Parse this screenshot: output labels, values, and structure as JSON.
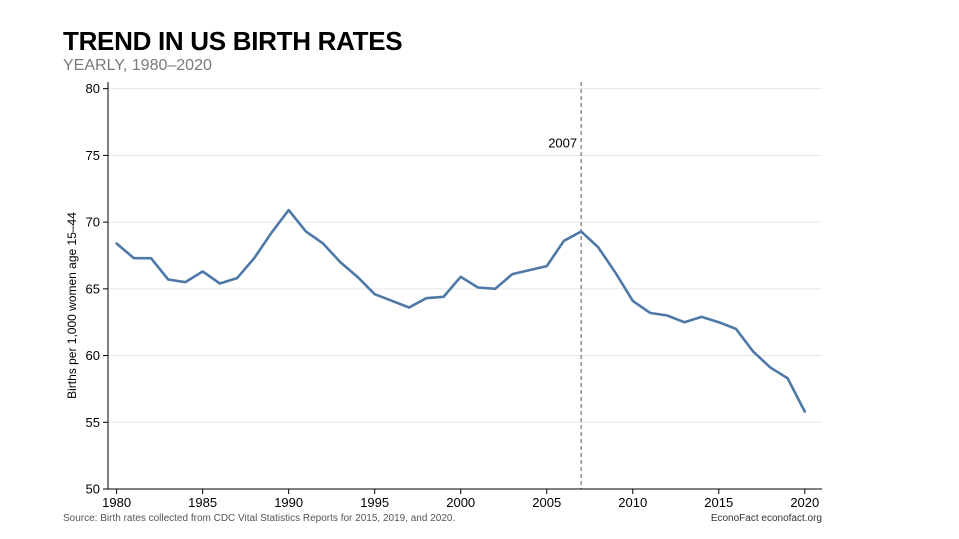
{
  "header": {
    "title": "TREND IN US BIRTH RATES",
    "subtitle": "YEARLY, 1980–2020"
  },
  "footer": {
    "source": "Source: Birth rates collected from CDC Vital Statistics Reports for 2015, 2019, and 2020.",
    "credit": "EconoFact   econofact.org"
  },
  "colors": {
    "line": "#4e79a7",
    "grid": "#e6e6e6",
    "reference_line": "#555555"
  },
  "chart_data": {
    "type": "line",
    "title": "TREND IN US BIRTH RATES",
    "subtitle": "YEARLY, 1980–2020",
    "xlabel": "",
    "ylabel": "Births per 1,000 women age 15–44",
    "xlim": [
      1979.5,
      2021
    ],
    "ylim": [
      50,
      80.5
    ],
    "x_ticks": [
      1980,
      1985,
      1990,
      1995,
      2000,
      2005,
      2010,
      2015,
      2020
    ],
    "y_ticks": [
      50,
      55,
      60,
      65,
      70,
      75,
      80
    ],
    "grid": "horizontal",
    "annotations": [
      {
        "type": "vertical-dashed-line",
        "x": 2007,
        "label": "2007"
      }
    ],
    "series": [
      {
        "x": [
          1980,
          1981,
          1982,
          1983,
          1984,
          1985,
          1986,
          1987,
          1988,
          1989,
          1990,
          1991,
          1992,
          1993,
          1994,
          1995,
          1996,
          1997,
          1998,
          1999,
          2000,
          2001,
          2002,
          2003,
          2004,
          2005,
          2006,
          2007,
          2008,
          2009,
          2010,
          2011,
          2012,
          2013,
          2014,
          2015,
          2016,
          2017,
          2018,
          2019,
          2020
        ],
        "values": [
          68.4,
          67.3,
          67.3,
          65.7,
          65.5,
          66.3,
          65.4,
          65.8,
          67.3,
          69.2,
          70.9,
          69.3,
          68.4,
          67.0,
          65.9,
          64.6,
          64.1,
          63.6,
          64.3,
          64.4,
          65.9,
          65.1,
          65.0,
          66.1,
          66.4,
          66.7,
          68.6,
          69.3,
          68.1,
          66.2,
          64.1,
          63.2,
          63.0,
          62.5,
          62.9,
          62.5,
          62.0,
          60.3,
          59.1,
          58.3,
          55.8
        ]
      }
    ]
  }
}
